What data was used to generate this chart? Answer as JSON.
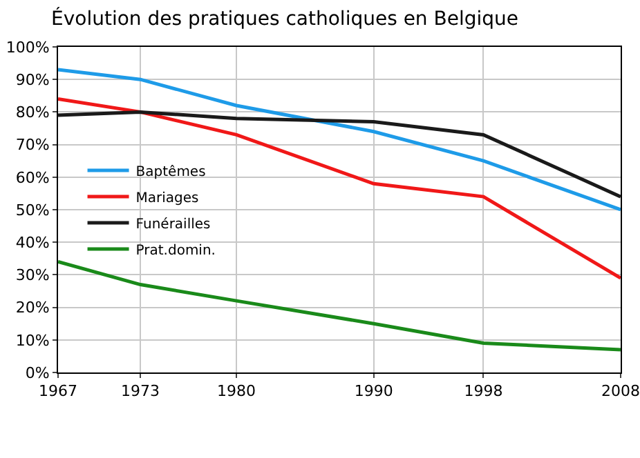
{
  "chart_data": {
    "type": "line",
    "title": "Évolution des pratiques catholiques en Belgique",
    "x": [
      1967,
      1973,
      1980,
      1990,
      1998,
      2008
    ],
    "series": [
      {
        "name": "Baptêmes",
        "color": "#1e9be8",
        "values": [
          93,
          90,
          82,
          74,
          65,
          50
        ]
      },
      {
        "name": "Mariages",
        "color": "#f01818",
        "values": [
          84,
          80,
          73,
          58,
          54,
          29
        ]
      },
      {
        "name": "Funérailles",
        "color": "#1a1a1a",
        "values": [
          79,
          80,
          78,
          77,
          73,
          54
        ]
      },
      {
        "name": "Prat.domin.",
        "color": "#1a8a1a",
        "values": [
          34,
          27,
          22,
          15,
          9,
          7
        ]
      }
    ],
    "xlim": [
      1967,
      2008
    ],
    "xticks": [
      1967,
      1973,
      1980,
      1990,
      1998,
      2008
    ],
    "ylim": [
      0,
      100
    ],
    "yticks": [
      {
        "value": 0,
        "label": "0%"
      },
      {
        "value": 10,
        "label": "10%"
      },
      {
        "value": 20,
        "label": "20%"
      },
      {
        "value": 30,
        "label": "30%"
      },
      {
        "value": 40,
        "label": "40%"
      },
      {
        "value": 50,
        "label": "50%"
      },
      {
        "value": 60,
        "label": "60%"
      },
      {
        "value": 70,
        "label": "70%"
      },
      {
        "value": 80,
        "label": "80%"
      },
      {
        "value": 90,
        "label": "90%"
      },
      {
        "value": 100,
        "label": "100%"
      }
    ],
    "grid": true,
    "legend": "left",
    "marker": "none",
    "line_style": "solid"
  }
}
